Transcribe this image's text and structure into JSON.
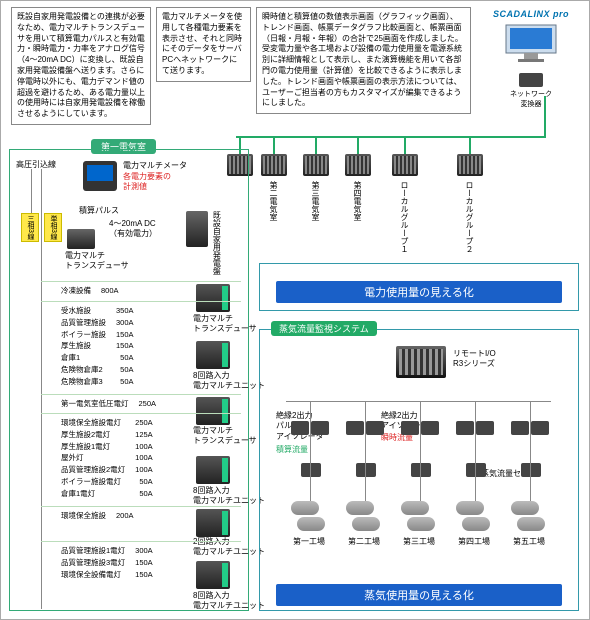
{
  "topbox1": "既設自家用発電設備との連携が必要なため、電力マルチトランスデューサを用いて積算電力パルスと有効電力・瞬時電力・力率をアナログ信号（4〜20mA DC）に変換し、既設自家用発電設備盤へ送ります。さらに停電時以外にも、電力デマンド値の超過を避けるため、ある電力量以上の使用時には自家用発電設備を稼働させるようにしています。",
  "topbox2": "電力マルチメータを使用して各種電力要素を表示させ、それと同時にそのデータをサーバPCへネットワークにて送ります。",
  "topbox3": "瞬時値と積算値の数値表示画面（グラフィック画面）、トレンド画面、帳票データグラフ比較画面と、帳票画面（日報・月報・年報）の合計で25画面を作成しました。受変電力量や各工場および設備の電力使用量を電源系統別に詳細情報として表示し、また演算機能を用いて各部門の電力使用量（計算値）を比較できるように表示しました。トレンド画面や帳票画面の表示方法については、ユーザーご担当者の方もカスタマイズが編集できるようにしました。",
  "scada": "SCADALINX pro",
  "net_label": "ネットワーク\n変換器",
  "rack_labels": [
    "第二電気室",
    "第三電気室",
    "第四電気室",
    "ローカルグループ１",
    "ローカルグループ２"
  ],
  "panel_header": "第一電気室",
  "hv_line": "高圧引込線",
  "yellow1": "三相3線",
  "yellow2": "単相3線",
  "meter_label": "電力マルチメータ",
  "meter_sub": "各電力要素の\n計測値",
  "pulse": "積算パルス",
  "signal": "4〜20mA DC\n（有効電力）",
  "trans_label": "電力マルチ\nトランスデューサ",
  "gen_label": "既設自家用発電盤",
  "multi_trans": "電力マルチ\nトランスデューサ",
  "multi_unit_8": "8回路入力\n電力マルチユニット",
  "multi_unit_2": "2回路入力\n電力マルチユニット",
  "circuits": {
    "g1_hdr": {
      "name": "冷凍設備",
      "a": "800A"
    },
    "g1": [
      {
        "name": "受水施設",
        "a": "350A"
      },
      {
        "name": "品質管理施設",
        "a": "300A"
      },
      {
        "name": "ボイラー施設",
        "a": "150A"
      },
      {
        "name": "厚生施設",
        "a": "150A"
      },
      {
        "name": "倉庫1",
        "a": "50A"
      },
      {
        "name": "危険物倉庫2",
        "a": "50A"
      },
      {
        "name": "危険物倉庫3",
        "a": "50A"
      }
    ],
    "g2_hdr": {
      "name": "第一電気室低圧電灯",
      "a": "250A"
    },
    "g3": [
      {
        "name": "環境保全施設電灯",
        "a": "250A"
      },
      {
        "name": "厚生施設2電灯",
        "a": "125A"
      },
      {
        "name": "厚生施設1電灯",
        "a": "100A"
      },
      {
        "name": "屋外灯",
        "a": "100A"
      },
      {
        "name": "品質管理施設2電灯",
        "a": "100A"
      },
      {
        "name": "ボイラー施設電灯",
        "a": "50A"
      },
      {
        "name": "倉庫1電灯",
        "a": "50A"
      }
    ],
    "g4_hdr": {
      "name": "環境保全施設",
      "a": "200A"
    },
    "g5": [
      {
        "name": "品質管理施設1電灯",
        "a": "300A"
      },
      {
        "name": "品質管理施設3電灯",
        "a": "150A"
      },
      {
        "name": "環境保全設備電灯",
        "a": "150A"
      }
    ]
  },
  "bluebar1": "電力使用量の見える化",
  "bluebar2": "蒸気使用量の見える化",
  "steam_header": "蒸気流量監視システム",
  "remote_label": "リモートI/O\nR3シリーズ",
  "isolator1": "絶縁2出力\nパルス\nアイソレータ",
  "isolator2": "絶縁2出力\nアイソレータ",
  "inst_flow": "瞬時流量",
  "accum_flow": "積算流量",
  "steam_sensor": "蒸気流量センサ",
  "factories": [
    "第一工場",
    "第二工場",
    "第三工場",
    "第四工場",
    "第五工場"
  ],
  "colors": {
    "green": "#2a6",
    "blue": "#1a60c8",
    "red": "#d22",
    "teal": "#39a"
  }
}
